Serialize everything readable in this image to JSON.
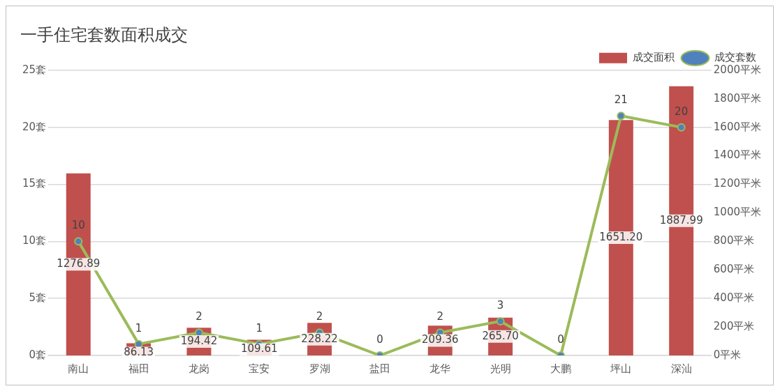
{
  "chart_data": {
    "type": "bar",
    "title": "一手住宅套数面积成交",
    "categories": [
      "南山",
      "福田",
      "龙岗",
      "宝安",
      "罗湖",
      "盐田",
      "龙华",
      "光明",
      "大鹏",
      "坪山",
      "深汕"
    ],
    "series": [
      {
        "name": "成交面积",
        "axis": "y2",
        "color": "#c0504d",
        "values": [
          1276.89,
          86.13,
          194.42,
          109.61,
          228.22,
          0,
          209.36,
          265.7,
          0,
          1651.2,
          1887.99
        ],
        "value_labels": [
          "1276.89",
          "86.13",
          "194.42",
          "109.61",
          "228.22",
          null,
          "209.36",
          "265.70",
          null,
          "1651.20",
          "1887.99"
        ]
      },
      {
        "name": "成交套数",
        "type": "line",
        "axis": "y",
        "color": "#9bbb59",
        "values": [
          10,
          1,
          2,
          1,
          2,
          0,
          2,
          3,
          0,
          21,
          20
        ],
        "value_labels": [
          "10",
          "1",
          "2",
          "1",
          "2",
          "0",
          "2",
          "3",
          "0",
          "21",
          "20"
        ]
      }
    ],
    "ylim": [
      0,
      25
    ],
    "yticks": [
      {
        "value": 0,
        "label": "0套"
      },
      {
        "value": 5,
        "label": "5套"
      },
      {
        "value": 10,
        "label": "10套"
      },
      {
        "value": 15,
        "label": "15套"
      },
      {
        "value": 20,
        "label": "20套"
      },
      {
        "value": 25,
        "label": "25套"
      }
    ],
    "y2lim": [
      0,
      2000
    ],
    "y2ticks": [
      {
        "value": 0,
        "label": "0平米"
      },
      {
        "value": 200,
        "label": "200平米"
      },
      {
        "value": 400,
        "label": "400平米"
      },
      {
        "value": 600,
        "label": "600平米"
      },
      {
        "value": 800,
        "label": "800平米"
      },
      {
        "value": 1000,
        "label": "1000平米"
      },
      {
        "value": 1200,
        "label": "1200平米"
      },
      {
        "value": 1400,
        "label": "1400平米"
      },
      {
        "value": 1600,
        "label": "1600平米"
      },
      {
        "value": 1800,
        "label": "1800平米"
      },
      {
        "value": 2000,
        "label": "2000平米"
      }
    ],
    "grid": "y",
    "legend": "top right",
    "marker": "circle",
    "line_style": "solid"
  }
}
